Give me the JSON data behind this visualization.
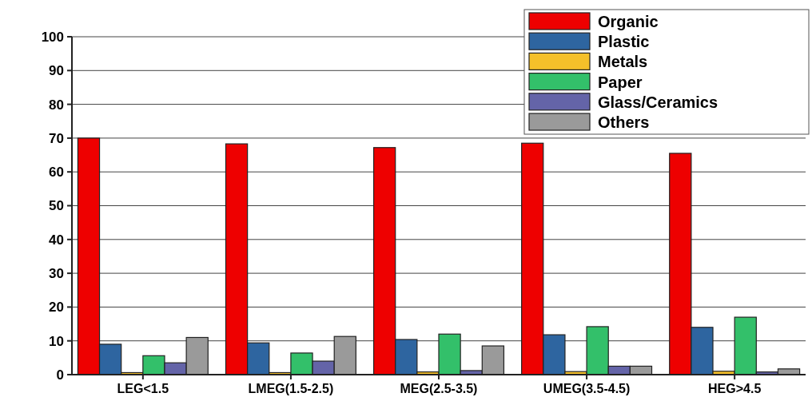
{
  "chart_data": {
    "type": "bar",
    "categories": [
      "LEG<1.5",
      "LMEG(1.5-2.5)",
      "MEG(2.5-3.5)",
      "UMEG(3.5-4.5)",
      "HEG>4.5"
    ],
    "series": [
      {
        "name": "Organic",
        "color": "#ee0000",
        "values": [
          70,
          68.3,
          67.2,
          68.5,
          65.5
        ]
      },
      {
        "name": "Plastic",
        "color": "#2e65a0",
        "values": [
          9,
          9.4,
          10.4,
          11.8,
          14
        ]
      },
      {
        "name": "Metals",
        "color": "#f5c02a",
        "values": [
          0.6,
          0.6,
          0.8,
          0.9,
          1
        ]
      },
      {
        "name": "Paper",
        "color": "#33c06a",
        "values": [
          5.6,
          6.4,
          12,
          14.2,
          17
        ]
      },
      {
        "name": "Glass/Ceramics",
        "color": "#6464a8",
        "values": [
          3.5,
          4,
          1.2,
          2.5,
          0.8
        ]
      },
      {
        "name": "Others",
        "color": "#9a9a9a",
        "values": [
          11,
          11.3,
          8.5,
          2.5,
          1.7
        ]
      }
    ],
    "ylim": [
      0,
      100
    ],
    "yticks": [
      0,
      10,
      20,
      30,
      40,
      50,
      60,
      70,
      80,
      90,
      100
    ],
    "grid": "y",
    "legend": "top right"
  }
}
